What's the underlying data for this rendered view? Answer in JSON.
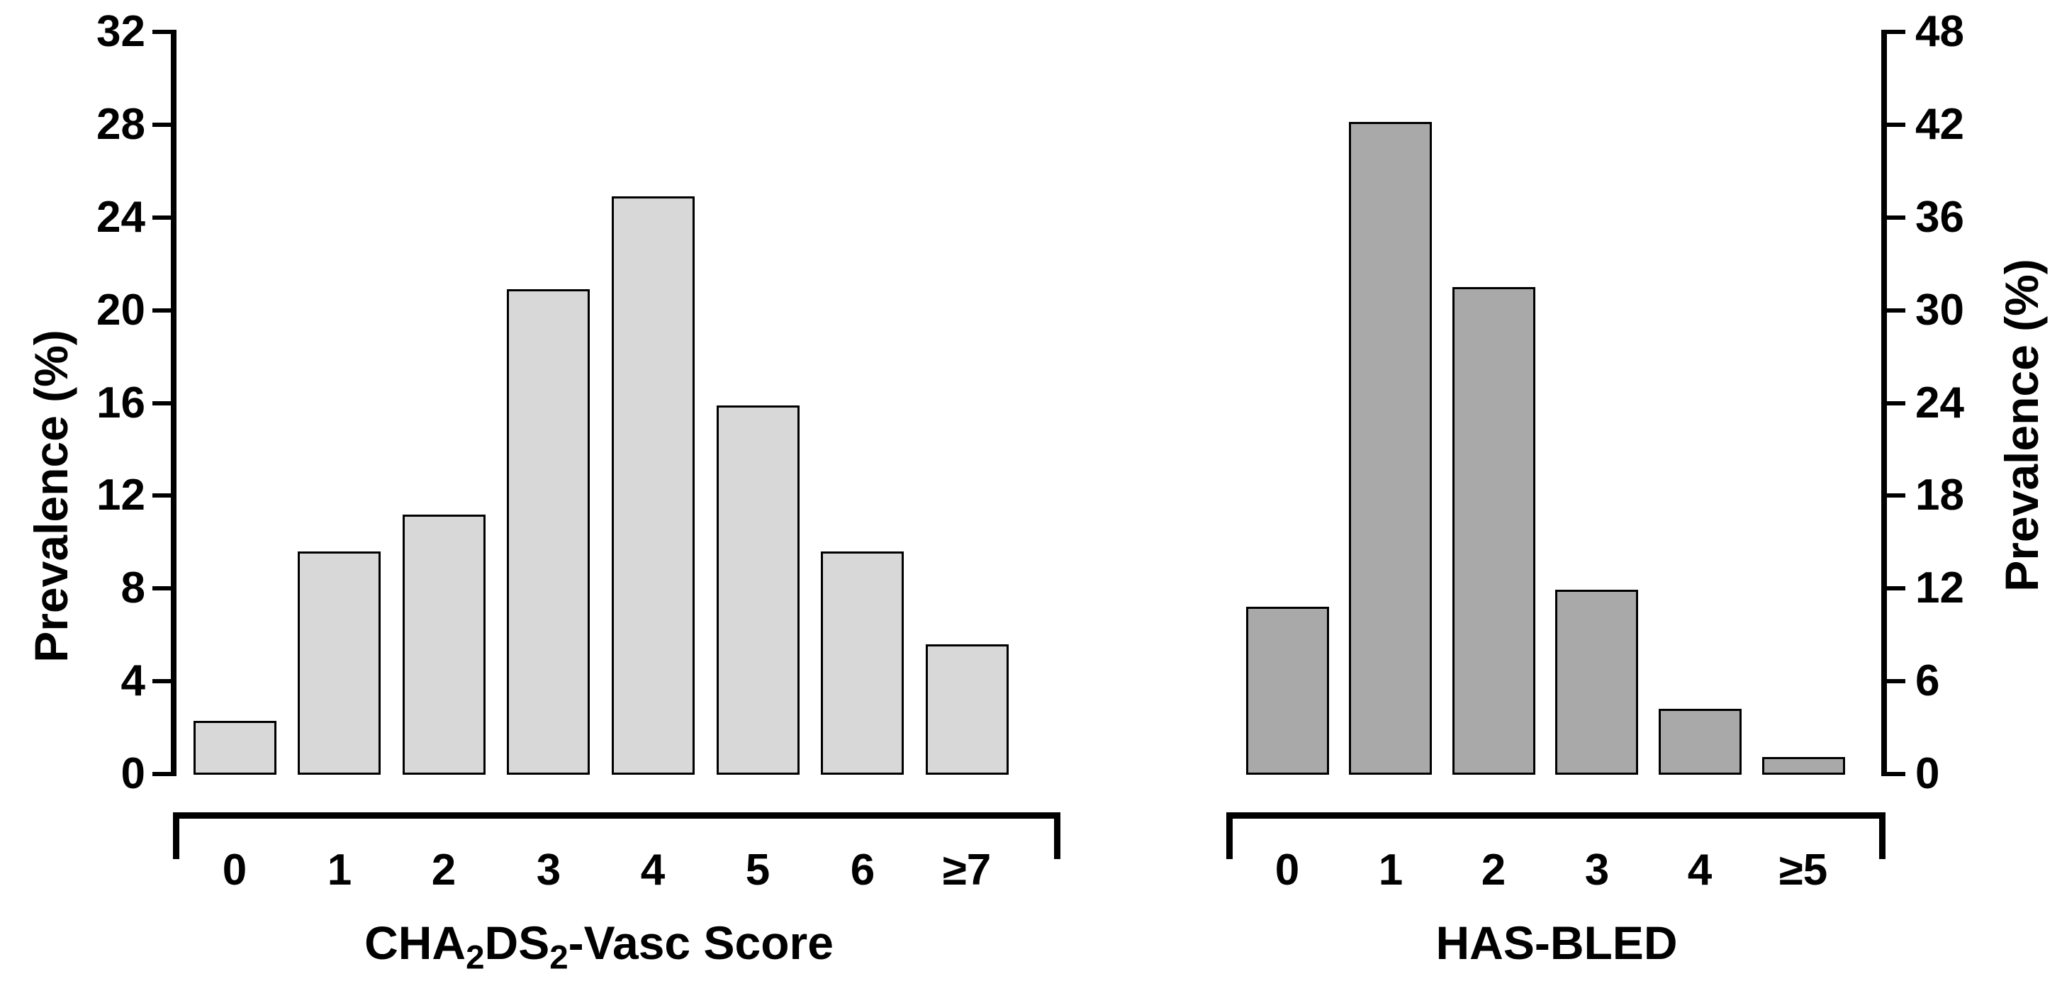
{
  "figure": {
    "background": "#ffffff",
    "text_color": "#000000"
  },
  "chart_data": [
    {
      "id": "chadsvasc",
      "type": "bar",
      "xlabel_plain": "CHA2DS2-Vasc Score",
      "xlabel_parts": [
        [
          "CHA",
          false
        ],
        [
          "2",
          true
        ],
        [
          "DS",
          false
        ],
        [
          "2",
          true
        ],
        [
          "-Vasc Score",
          false
        ]
      ],
      "ylabel": "Prevalence (%)",
      "categories": [
        "0",
        "1",
        "2",
        "3",
        "4",
        "5",
        "6",
        "≥7"
      ],
      "values": [
        2.3,
        9.6,
        11.2,
        20.9,
        24.9,
        15.9,
        9.6,
        5.6
      ],
      "ylim": [
        0,
        32
      ],
      "y_ticks": [
        0,
        4,
        8,
        12,
        16,
        20,
        24,
        28,
        32
      ],
      "y_axis_side": "left",
      "grid": false,
      "bar_fill": "#d8d8d8",
      "bar_border": "#000000"
    },
    {
      "id": "hasbled",
      "type": "bar",
      "xlabel_plain": "HAS-BLED",
      "xlabel_parts": [
        [
          "HAS-BLED",
          false
        ]
      ],
      "ylabel": "Prevalence (%)",
      "categories": [
        "0",
        "1",
        "2",
        "3",
        "4",
        "≥5"
      ],
      "values": [
        10.8,
        42.2,
        31.5,
        11.9,
        4.2,
        1.1
      ],
      "ylim": [
        0,
        48
      ],
      "y_ticks": [
        0,
        6,
        12,
        18,
        24,
        30,
        36,
        42,
        48
      ],
      "y_axis_side": "right",
      "grid": false,
      "bar_fill": "#a9a9a9",
      "bar_border": "#000000"
    }
  ]
}
